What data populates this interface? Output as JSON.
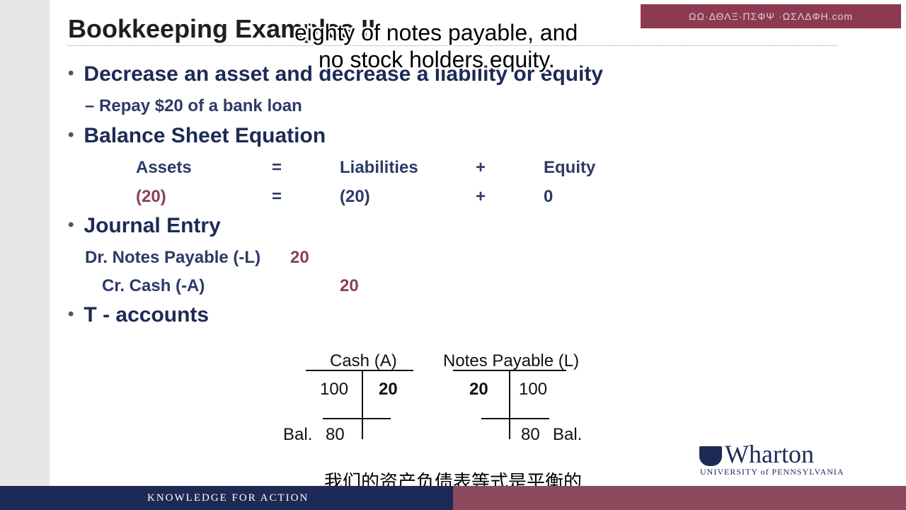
{
  "slide": {
    "title": "Bookkeeping Examples II",
    "watermark": "ΩΩ·ΔΘΛΞ·ΠΣΦΨ ·ΩΣΛΔΦΗ.com",
    "bullets": [
      "Decrease an asset and decrease a liability or equity",
      "Balance Sheet Equation",
      "Journal Entry",
      "T - accounts"
    ],
    "sub_item": "– Repay $20 of a bank loan",
    "equation": {
      "header": {
        "assets": "Assets",
        "eq": "=",
        "liabilities": "Liabilities",
        "plus": "+",
        "equity": "Equity"
      },
      "row": {
        "assets": "(20)",
        "eq": "=",
        "liabilities": "(20)",
        "plus": "+",
        "equity": "0"
      }
    },
    "journal": {
      "debit_label": "Dr. Notes Payable (-L)",
      "debit_amount": "20",
      "credit_label": "Cr. Cash (-A)",
      "credit_amount": "20"
    },
    "t_accounts": {
      "cash": {
        "title": "Cash (A)",
        "debit": "100",
        "credit": "20",
        "bal_label": "Bal.",
        "bal": "80"
      },
      "notes": {
        "title": "Notes Payable (L)",
        "debit": "20",
        "credit": "100",
        "bal": "80",
        "bal_label": "Bal."
      }
    },
    "logo": {
      "name": "Wharton",
      "university": "UNIVERSITY of PENNSYLVANIA"
    },
    "footer": "KNOWLEDGE FOR ACTION"
  },
  "subtitles": {
    "en_line1": "eighty of notes payable, and",
    "en_line2": "no stock holders equity.",
    "zh": "我们的资产负债表等式是平衡的"
  },
  "colors": {
    "navy": "#1c2a55",
    "maroon": "#8a3e5e",
    "footer_right": "#8c4a5e"
  }
}
